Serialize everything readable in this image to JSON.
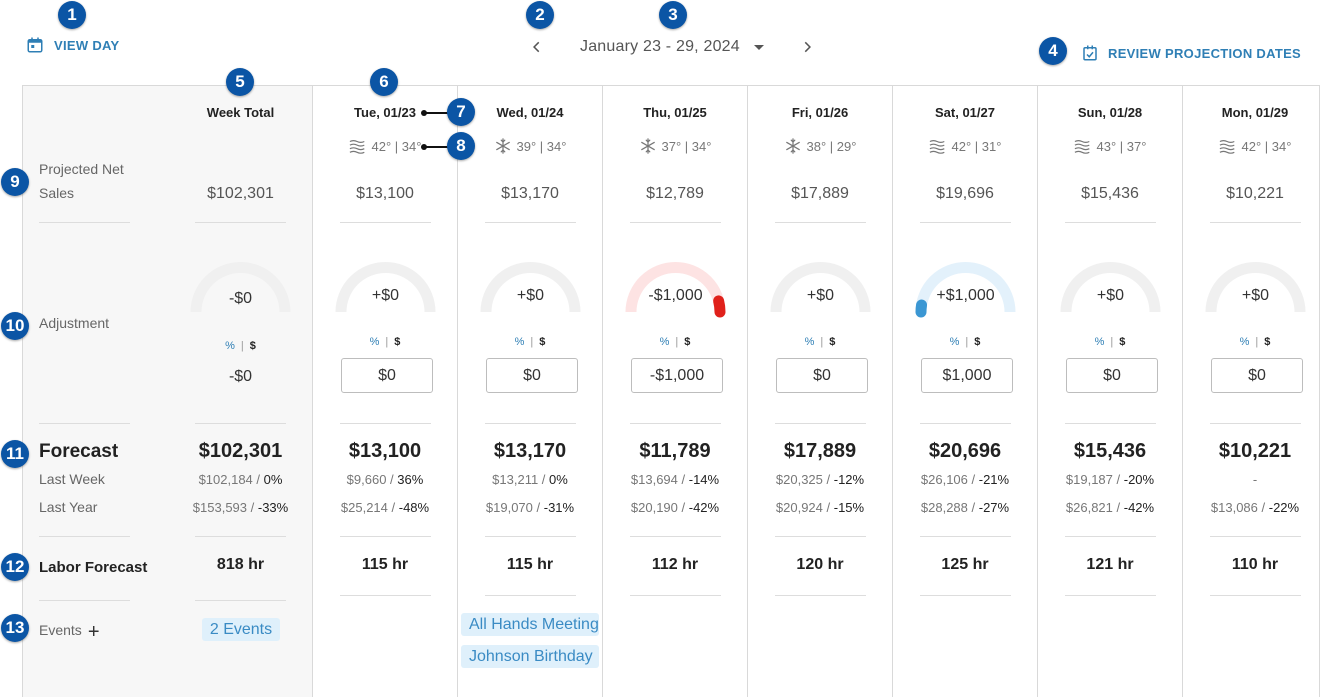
{
  "header": {
    "view_day": "VIEW DAY",
    "date_range": "January 23 - 29, 2024",
    "review": "REVIEW PROJECTION DATES"
  },
  "callouts": [
    "1",
    "2",
    "3",
    "4",
    "5",
    "6",
    "7",
    "8",
    "9",
    "10",
    "11",
    "12",
    "13"
  ],
  "rows": {
    "projected_net_sales_1": "Projected Net",
    "projected_net_sales_2": "Sales",
    "adjustment": "Adjustment",
    "forecast": "Forecast",
    "last_week": "Last Week",
    "last_year": "Last Year",
    "labor_forecast": "Labor Forecast",
    "events": "Events"
  },
  "total": {
    "header": "Week Total",
    "sales": "$102,301",
    "adjustment": "-$0",
    "adjustment_value": "-$0",
    "pct": "%",
    "dol": "$",
    "forecast": "$102,301",
    "last_week_value": "$102,184",
    "last_week_change": "0%",
    "last_year_value": "$153,593",
    "last_year_change": "-33%",
    "labor": "818 hr",
    "events_chip": "2 Events"
  },
  "days": [
    {
      "header": "Tue, 01/23",
      "weather_icon": "wind-icon",
      "temps": "42° | 34°",
      "sales": "$13,100",
      "adjustment": "+$0",
      "adj_fraction": 0,
      "input": "$0",
      "pct": "%",
      "dol": "$",
      "forecast": "$13,100",
      "lw_value": "$9,660",
      "lw_change": "36%",
      "ly_value": "$25,214",
      "ly_change": "-48%",
      "labor": "115 hr",
      "events": []
    },
    {
      "header": "Wed, 01/24",
      "weather_icon": "snow-icon",
      "temps": "39° | 34°",
      "sales": "$13,170",
      "adjustment": "+$0",
      "adj_fraction": 0,
      "input": "$0",
      "pct": "%",
      "dol": "$",
      "forecast": "$13,170",
      "lw_value": "$13,211",
      "lw_change": "0%",
      "ly_value": "$19,070",
      "ly_change": "-31%",
      "labor": "115 hr",
      "events": [
        "All Hands Meeting",
        "Johnson Birthday"
      ]
    },
    {
      "header": "Thu, 01/25",
      "weather_icon": "snow-icon",
      "temps": "37° | 34°",
      "sales": "$12,789",
      "adjustment": "-$1,000",
      "adj_fraction": -0.08,
      "input": "-$1,000",
      "pct": "%",
      "dol": "$",
      "forecast": "$11,789",
      "lw_value": "$13,694",
      "lw_change": "-14%",
      "ly_value": "$20,190",
      "ly_change": "-42%",
      "labor": "112 hr",
      "events": []
    },
    {
      "header": "Fri, 01/26",
      "weather_icon": "snow-icon",
      "temps": "38° | 29°",
      "sales": "$17,889",
      "adjustment": "+$0",
      "adj_fraction": 0,
      "input": "$0",
      "pct": "%",
      "dol": "$",
      "forecast": "$17,889",
      "lw_value": "$20,325",
      "lw_change": "-12%",
      "ly_value": "$20,924",
      "ly_change": "-15%",
      "labor": "120 hr",
      "events": []
    },
    {
      "header": "Sat, 01/27",
      "weather_icon": "wind-icon",
      "temps": "42° | 31°",
      "sales": "$19,696",
      "adjustment": "+$1,000",
      "adj_fraction": 0.05,
      "input": "$1,000",
      "pct": "%",
      "dol": "$",
      "forecast": "$20,696",
      "lw_value": "$26,106",
      "lw_change": "-21%",
      "ly_value": "$28,288",
      "ly_change": "-27%",
      "labor": "125 hr",
      "events": []
    },
    {
      "header": "Sun, 01/28",
      "weather_icon": "wind-icon",
      "temps": "43° | 37°",
      "sales": "$15,436",
      "adjustment": "+$0",
      "adj_fraction": 0,
      "input": "$0",
      "pct": "%",
      "dol": "$",
      "forecast": "$15,436",
      "lw_value": "$19,187",
      "lw_change": "-20%",
      "ly_value": "$26,821",
      "ly_change": "-42%",
      "labor": "121 hr",
      "events": []
    },
    {
      "header": "Mon, 01/29",
      "weather_icon": "wind-icon",
      "temps": "42° | 34°",
      "sales": "$10,221",
      "adjustment": "+$0",
      "adj_fraction": 0,
      "input": "$0",
      "pct": "%",
      "dol": "$",
      "forecast": "$10,221",
      "lw_value": "-",
      "lw_change": "",
      "ly_value": "$13,086",
      "ly_change": "-22%",
      "labor": "110 hr",
      "events": []
    }
  ],
  "colors": {
    "accent": "#2f7fb5",
    "callout": "#0b55a5",
    "gauge_track": "#f0f0f0",
    "gauge_negative_track": "#fde3e3",
    "gauge_negative": "#e0211b",
    "gauge_positive_track": "#e3f1fb",
    "gauge_positive": "#3b97d3",
    "event_chip": "#dff0fb"
  }
}
